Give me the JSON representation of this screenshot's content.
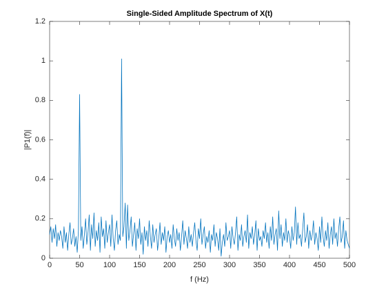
{
  "chart_data": {
    "type": "line",
    "title": "Single-Sided Amplitude Spectrum of X(t)",
    "x_label": "f (Hz)",
    "y_label": "|P1(f)|",
    "xlim": [
      0,
      500
    ],
    "xticks": [
      0,
      50,
      100,
      150,
      200,
      250,
      300,
      350,
      400,
      450,
      500
    ],
    "ylim": [
      0,
      1.2
    ],
    "yticks": [
      0,
      0.2,
      0.4,
      0.6,
      0.8,
      1,
      1.2
    ],
    "grid": false,
    "x": [
      0,
      2,
      4,
      6,
      8,
      10,
      12,
      14,
      16,
      18,
      20,
      22,
      24,
      26,
      28,
      30,
      32,
      34,
      36,
      38,
      40,
      42,
      44,
      46,
      48,
      50,
      52,
      54,
      56,
      58,
      60,
      62,
      64,
      66,
      68,
      70,
      72,
      74,
      76,
      78,
      80,
      82,
      84,
      86,
      88,
      90,
      92,
      94,
      96,
      98,
      100,
      102,
      104,
      106,
      108,
      110,
      112,
      114,
      116,
      118,
      120,
      122,
      124,
      126,
      128,
      130,
      132,
      134,
      136,
      138,
      140,
      142,
      144,
      146,
      148,
      150,
      152,
      154,
      156,
      158,
      160,
      162,
      164,
      166,
      168,
      170,
      172,
      174,
      176,
      178,
      180,
      182,
      184,
      186,
      188,
      190,
      192,
      194,
      196,
      198,
      200,
      202,
      204,
      206,
      208,
      210,
      212,
      214,
      216,
      218,
      220,
      222,
      224,
      226,
      228,
      230,
      232,
      234,
      236,
      238,
      240,
      242,
      244,
      246,
      248,
      250,
      252,
      254,
      256,
      258,
      260,
      262,
      264,
      266,
      268,
      270,
      272,
      274,
      276,
      278,
      280,
      282,
      284,
      286,
      288,
      290,
      292,
      294,
      296,
      298,
      300,
      302,
      304,
      306,
      308,
      310,
      312,
      314,
      316,
      318,
      320,
      322,
      324,
      326,
      328,
      330,
      332,
      334,
      336,
      338,
      340,
      342,
      344,
      346,
      348,
      350,
      352,
      354,
      356,
      358,
      360,
      362,
      364,
      366,
      368,
      370,
      372,
      374,
      376,
      378,
      380,
      382,
      384,
      386,
      388,
      390,
      392,
      394,
      396,
      398,
      400,
      402,
      404,
      406,
      408,
      410,
      412,
      414,
      416,
      418,
      420,
      422,
      424,
      426,
      428,
      430,
      432,
      434,
      436,
      438,
      440,
      442,
      444,
      446,
      448,
      450,
      452,
      454,
      456,
      458,
      460,
      462,
      464,
      466,
      468,
      470,
      472,
      474,
      476,
      478,
      480,
      482,
      484,
      486,
      488,
      490,
      492,
      494,
      496,
      498,
      500
    ],
    "series": [
      {
        "color": "#0072bd",
        "values": [
          0.12,
          0.16,
          0.08,
          0.15,
          0.1,
          0.17,
          0.06,
          0.13,
          0.09,
          0.14,
          0.11,
          0.05,
          0.16,
          0.08,
          0.13,
          0.04,
          0.12,
          0.18,
          0.07,
          0.1,
          0.15,
          0.06,
          0.11,
          0.03,
          0.14,
          0.83,
          0.09,
          0.16,
          0.05,
          0.12,
          0.2,
          0.07,
          0.13,
          0.22,
          0.04,
          0.17,
          0.1,
          0.23,
          0.06,
          0.14,
          0.09,
          0.18,
          0.03,
          0.21,
          0.11,
          0.15,
          0.05,
          0.19,
          0.08,
          0.13,
          0.17,
          0.06,
          0.22,
          0.1,
          0.04,
          0.14,
          0.19,
          0.07,
          0.12,
          0.09,
          1.01,
          0.11,
          0.16,
          0.28,
          0.05,
          0.27,
          0.09,
          0.14,
          0.21,
          0.06,
          0.12,
          0.18,
          0.04,
          0.15,
          0.1,
          0.2,
          0.07,
          0.13,
          0.02,
          0.16,
          0.09,
          0.14,
          0.06,
          0.19,
          0.11,
          0.05,
          0.17,
          0.08,
          0.12,
          0.15,
          0.04,
          0.1,
          0.18,
          0.07,
          0.13,
          0.09,
          0.16,
          0.03,
          0.11,
          0.14,
          0.08,
          0.12,
          0.05,
          0.17,
          0.1,
          0.06,
          0.15,
          0.09,
          0.13,
          0.04,
          0.11,
          0.19,
          0.07,
          0.14,
          0.1,
          0.05,
          0.16,
          0.08,
          0.12,
          0.06,
          0.13,
          0.18,
          0.09,
          0.04,
          0.15,
          0.1,
          0.2,
          0.07,
          0.12,
          0.16,
          0.05,
          0.11,
          0.08,
          0.14,
          0.03,
          0.12,
          0.09,
          0.17,
          0.06,
          0.13,
          0.1,
          0.04,
          0.15,
          0.01,
          0.08,
          0.12,
          0.06,
          0.18,
          0.09,
          0.11,
          0.14,
          0.05,
          0.16,
          0.1,
          0.07,
          0.13,
          0.21,
          0.04,
          0.12,
          0.09,
          0.17,
          0.06,
          0.11,
          0.14,
          0.08,
          0.22,
          0.05,
          0.13,
          0.1,
          0.16,
          0.07,
          0.12,
          0.19,
          0.04,
          0.15,
          0.09,
          0.11,
          0.06,
          0.14,
          0.1,
          0.18,
          0.08,
          0.13,
          0.05,
          0.16,
          0.09,
          0.21,
          0.07,
          0.12,
          0.15,
          0.04,
          0.24,
          0.1,
          0.17,
          0.06,
          0.13,
          0.09,
          0.2,
          0.08,
          0.14,
          0.11,
          0.05,
          0.16,
          0.09,
          0.13,
          0.26,
          0.07,
          0.18,
          0.1,
          0.12,
          0.06,
          0.15,
          0.23,
          0.08,
          0.11,
          0.17,
          0.05,
          0.14,
          0.09,
          0.12,
          0.19,
          0.07,
          0.13,
          0.1,
          0.04,
          0.16,
          0.08,
          0.21,
          0.11,
          0.06,
          0.14,
          0.09,
          0.18,
          0.05,
          0.12,
          0.16,
          0.07,
          0.2,
          0.1,
          0.13,
          0.06,
          0.15,
          0.21,
          0.08,
          0.11,
          0.19,
          0.05,
          0.14,
          0.09,
          0.07,
          0.05
        ]
      }
    ]
  }
}
